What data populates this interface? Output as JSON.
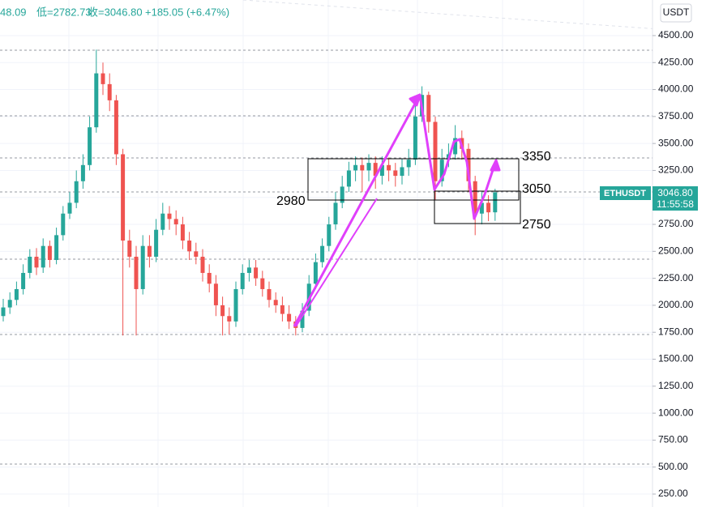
{
  "chart_data": {
    "type": "candlestick",
    "header": [
      "48.09",
      "低=2782.73",
      "收=3046.80",
      "+185.05 (+6.47%)"
    ],
    "currency_button": "USDT",
    "price_label": {
      "symbol": "ETHUSDT",
      "price": "3046.80",
      "countdown": "11:55:58"
    },
    "annotations": [
      "3350",
      "3050",
      "2980",
      "2750"
    ],
    "up_color": "#26a69a",
    "down_color": "#ef5350",
    "ylim": [
      130,
      4830
    ],
    "yticks": [
      {
        "value": 250,
        "label": "250.00"
      },
      {
        "value": 500,
        "label": "500.00"
      },
      {
        "value": 750,
        "label": "750.00"
      },
      {
        "value": 1000,
        "label": "1000.00"
      },
      {
        "value": 1250,
        "label": "1250.00"
      },
      {
        "value": 1500,
        "label": "1500.00"
      },
      {
        "value": 1750,
        "label": "1750.00"
      },
      {
        "value": 2000,
        "label": "2000.00"
      },
      {
        "value": 2250,
        "label": "2250.00"
      },
      {
        "value": 2500,
        "label": "2500.00"
      },
      {
        "value": 2750,
        "label": "2750.00"
      },
      {
        "value": 3000,
        "label": "3000.00"
      },
      {
        "value": 3250,
        "label": "3250.00"
      },
      {
        "value": 3500,
        "label": "3500.00"
      },
      {
        "value": 3750,
        "label": "3750.00"
      },
      {
        "value": 4000,
        "label": "4000.00"
      },
      {
        "value": 4250,
        "label": "4250.00"
      },
      {
        "value": 4500,
        "label": "4500.00"
      }
    ],
    "open": [
      1900,
      1980,
      2050,
      2150,
      2300,
      2450,
      2350,
      2550,
      2420,
      2650,
      2850,
      2950,
      3150,
      3300,
      3650,
      4150,
      4050,
      3900,
      3400,
      2600,
      2450,
      2150,
      2550,
      2450,
      2700,
      2850,
      2800,
      2750,
      2600,
      2500,
      2450,
      2300,
      2200,
      2000,
      1900,
      1850,
      2150,
      2300,
      2350,
      2250,
      2150,
      2050,
      2000,
      1920,
      1850,
      1790,
      1950,
      2200,
      2400,
      2550,
      2750,
      2950,
      3100,
      3250,
      3300,
      3250,
      3320,
      3200,
      3300,
      3250,
      3200,
      3280,
      3350,
      3750,
      3950,
      3700,
      3150,
      3350,
      3400,
      3550,
      3450,
      3150,
      2850,
      2950,
      2861.75
    ],
    "high": [
      2060,
      2120,
      2220,
      2380,
      2520,
      2530,
      2620,
      2600,
      2720,
      2920,
      3050,
      3250,
      3400,
      3750,
      4370,
      4250,
      4150,
      3950,
      3450,
      2700,
      2550,
      2650,
      2650,
      2800,
      2950,
      2920,
      2880,
      2820,
      2680,
      2580,
      2520,
      2380,
      2280,
      2080,
      1980,
      2220,
      2380,
      2420,
      2420,
      2320,
      2220,
      2120,
      2080,
      2000,
      1900,
      2020,
      2280,
      2480,
      2620,
      2820,
      3050,
      3200,
      3330,
      3380,
      3370,
      3400,
      3380,
      3380,
      3370,
      3320,
      3360,
      3450,
      3850,
      4030,
      3980,
      3750,
      3450,
      3500,
      3670,
      3620,
      3500,
      3200,
      3050,
      3020,
      3080
    ],
    "low": [
      1850,
      1920,
      2000,
      2100,
      2250,
      2280,
      2300,
      2350,
      2380,
      2600,
      2800,
      2900,
      3080,
      3250,
      3600,
      3950,
      3800,
      3300,
      1720,
      2350,
      1720,
      2100,
      2350,
      2400,
      2650,
      2700,
      2650,
      2520,
      2420,
      2380,
      2220,
      2120,
      1900,
      1720,
      1730,
      1800,
      2100,
      2220,
      2180,
      2080,
      1980,
      1930,
      1850,
      1780,
      1720,
      1750,
      1900,
      2150,
      2350,
      2500,
      2700,
      2900,
      3050,
      3150,
      3050,
      3150,
      3080,
      3120,
      3150,
      3100,
      3120,
      3200,
      3300,
      3700,
      3600,
      2980,
      3100,
      3280,
      3350,
      3350,
      3050,
      2650,
      2750,
      2780,
      2782.73
    ],
    "close": [
      1980,
      2050,
      2150,
      2300,
      2450,
      2350,
      2550,
      2420,
      2650,
      2850,
      2950,
      3150,
      3300,
      3650,
      4150,
      4050,
      3900,
      3400,
      2600,
      2450,
      2150,
      2550,
      2450,
      2700,
      2850,
      2800,
      2750,
      2600,
      2500,
      2450,
      2300,
      2200,
      2000,
      1900,
      1850,
      2150,
      2300,
      2350,
      2250,
      2150,
      2050,
      2000,
      1920,
      1850,
      1790,
      1950,
      2200,
      2400,
      2550,
      2750,
      2950,
      3100,
      3250,
      3300,
      3250,
      3320,
      3200,
      3300,
      3250,
      3200,
      3280,
      3350,
      3750,
      3950,
      3700,
      3150,
      3350,
      3400,
      3550,
      3450,
      3150,
      2850,
      2950,
      2861.75,
      3046.8
    ]
  }
}
